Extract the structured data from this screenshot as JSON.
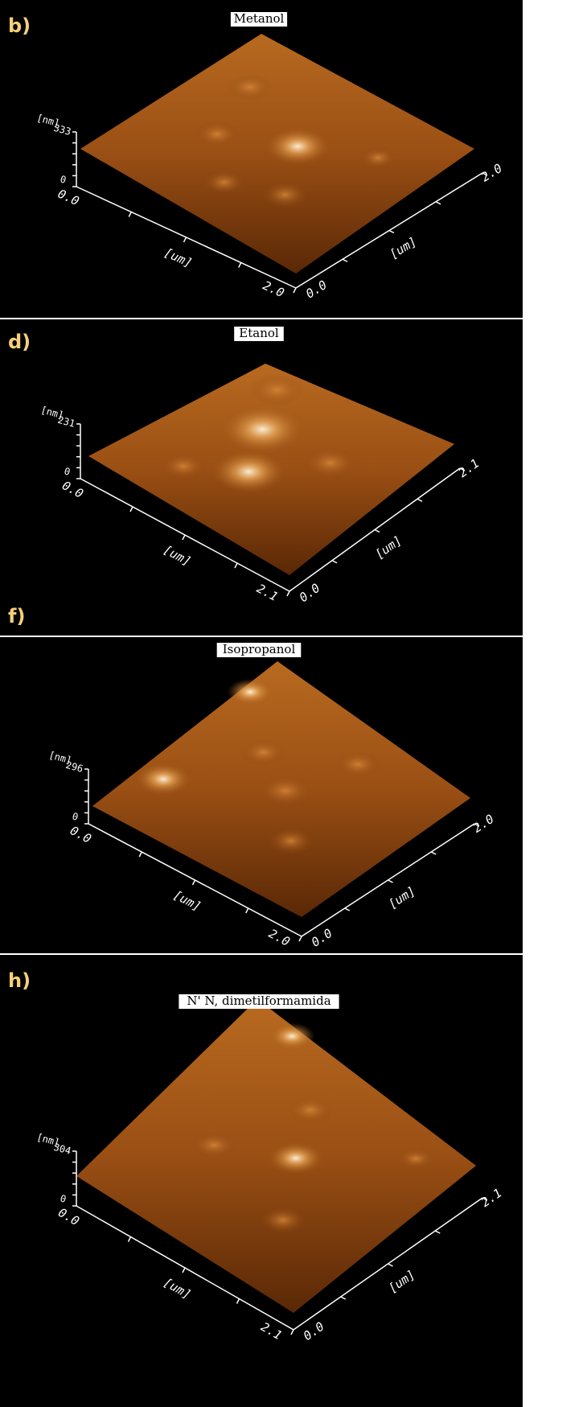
{
  "panels": [
    {
      "label": "b)",
      "title": "Metanol",
      "z_unit": "[nm]",
      "z_max": "333",
      "z_min": "0",
      "x_unit": "[um]",
      "x_start": "0.0",
      "x_end": "2.0",
      "y_unit": "[um]",
      "y_start": "0.0",
      "y_end": "2.0"
    },
    {
      "label": "d)",
      "title": "Etanol",
      "z_unit": "[nm]",
      "z_max": "231",
      "z_min": "0",
      "x_unit": "[um]",
      "x_start": "0.0",
      "x_end": "2.1",
      "y_unit": "[um]",
      "y_start": "0.0",
      "y_end": "2.1"
    },
    {
      "label": "f)",
      "title": "Isopropanol",
      "z_unit": "[nm]",
      "z_max": "296",
      "z_min": "0",
      "x_unit": "[um]",
      "x_start": "0.0",
      "x_end": "2.0",
      "y_unit": "[um]",
      "y_start": "0.0",
      "y_end": "2.0"
    },
    {
      "label": "h)",
      "title": "N' N, dimetilformamida",
      "z_unit": "[nm]",
      "z_max": "304",
      "z_min": "0",
      "x_unit": "[um]",
      "x_start": "0.0",
      "x_end": "2.1",
      "y_unit": "[um]",
      "y_start": "0.0",
      "y_end": "2.1"
    }
  ]
}
